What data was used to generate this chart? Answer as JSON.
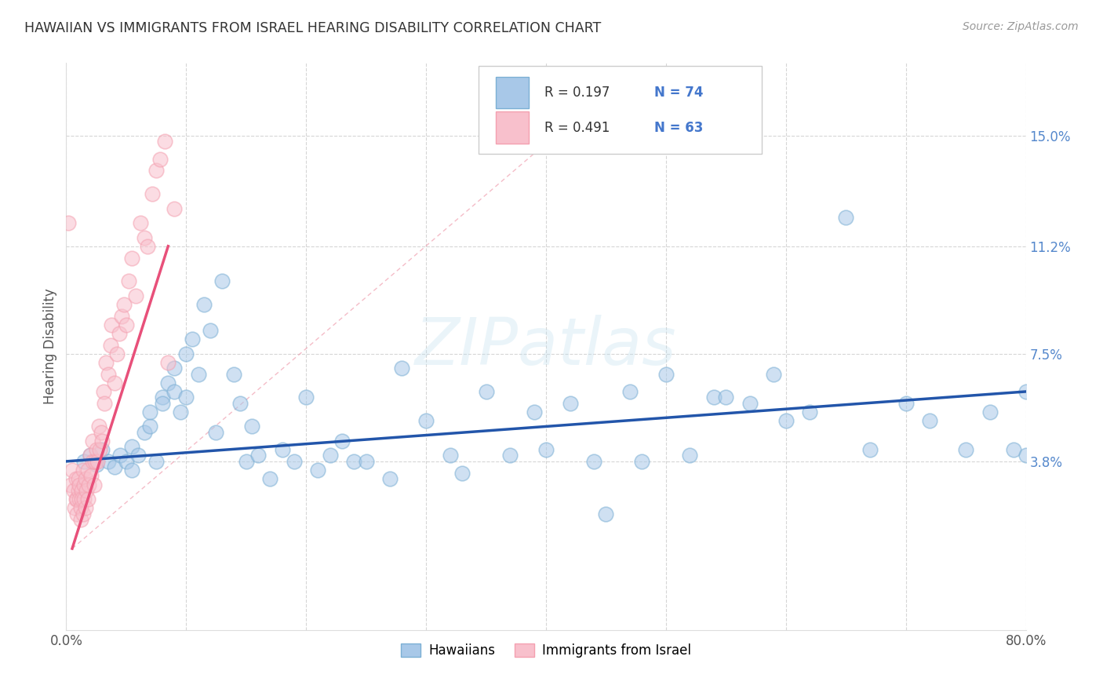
{
  "title": "HAWAIIAN VS IMMIGRANTS FROM ISRAEL HEARING DISABILITY CORRELATION CHART",
  "source": "Source: ZipAtlas.com",
  "ylabel": "Hearing Disability",
  "xlim": [
    0.0,
    0.8
  ],
  "ylim": [
    -0.02,
    0.175
  ],
  "yticks": [
    0.038,
    0.075,
    0.112,
    0.15
  ],
  "ytick_labels": [
    "3.8%",
    "7.5%",
    "11.2%",
    "15.0%"
  ],
  "xticks": [
    0.0,
    0.1,
    0.2,
    0.3,
    0.4,
    0.5,
    0.6,
    0.7,
    0.8
  ],
  "blue_color": "#7BAFD4",
  "blue_fill_color": "#A8C8E8",
  "pink_color": "#F4A0B0",
  "pink_fill_color": "#F8C0CC",
  "blue_line_color": "#2255AA",
  "pink_line_color": "#E8507A",
  "legend_R_blue": "0.197",
  "legend_N_blue": "74",
  "legend_R_pink": "0.491",
  "legend_N_pink": "63",
  "watermark": "ZIPatlas",
  "hawaiians_label": "Hawaiians",
  "israel_label": "Immigrants from Israel",
  "blue_scatter_x": [
    0.015,
    0.02,
    0.025,
    0.03,
    0.035,
    0.04,
    0.045,
    0.05,
    0.055,
    0.055,
    0.06,
    0.065,
    0.07,
    0.07,
    0.075,
    0.08,
    0.08,
    0.085,
    0.09,
    0.09,
    0.095,
    0.1,
    0.1,
    0.105,
    0.11,
    0.115,
    0.12,
    0.125,
    0.13,
    0.14,
    0.145,
    0.15,
    0.155,
    0.16,
    0.17,
    0.18,
    0.19,
    0.2,
    0.21,
    0.22,
    0.23,
    0.24,
    0.25,
    0.27,
    0.28,
    0.3,
    0.32,
    0.33,
    0.35,
    0.37,
    0.39,
    0.4,
    0.42,
    0.44,
    0.45,
    0.47,
    0.48,
    0.5,
    0.52,
    0.54,
    0.55,
    0.57,
    0.59,
    0.6,
    0.62,
    0.65,
    0.67,
    0.7,
    0.72,
    0.75,
    0.77,
    0.79,
    0.8,
    0.8
  ],
  "blue_scatter_y": [
    0.038,
    0.04,
    0.037,
    0.042,
    0.038,
    0.036,
    0.04,
    0.038,
    0.035,
    0.043,
    0.04,
    0.048,
    0.05,
    0.055,
    0.038,
    0.06,
    0.058,
    0.065,
    0.062,
    0.07,
    0.055,
    0.075,
    0.06,
    0.08,
    0.068,
    0.092,
    0.083,
    0.048,
    0.1,
    0.068,
    0.058,
    0.038,
    0.05,
    0.04,
    0.032,
    0.042,
    0.038,
    0.06,
    0.035,
    0.04,
    0.045,
    0.038,
    0.038,
    0.032,
    0.07,
    0.052,
    0.04,
    0.034,
    0.062,
    0.04,
    0.055,
    0.042,
    0.058,
    0.038,
    0.02,
    0.062,
    0.038,
    0.068,
    0.04,
    0.06,
    0.06,
    0.058,
    0.068,
    0.052,
    0.055,
    0.122,
    0.042,
    0.058,
    0.052,
    0.042,
    0.055,
    0.042,
    0.04,
    0.062
  ],
  "pink_scatter_x": [
    0.002,
    0.004,
    0.005,
    0.006,
    0.007,
    0.008,
    0.008,
    0.009,
    0.009,
    0.01,
    0.01,
    0.011,
    0.011,
    0.012,
    0.012,
    0.013,
    0.013,
    0.014,
    0.014,
    0.015,
    0.015,
    0.016,
    0.016,
    0.017,
    0.018,
    0.018,
    0.019,
    0.02,
    0.021,
    0.022,
    0.022,
    0.023,
    0.024,
    0.025,
    0.026,
    0.027,
    0.028,
    0.029,
    0.03,
    0.031,
    0.032,
    0.033,
    0.035,
    0.037,
    0.038,
    0.04,
    0.042,
    0.044,
    0.046,
    0.048,
    0.05,
    0.052,
    0.055,
    0.058,
    0.062,
    0.065,
    0.068,
    0.072,
    0.075,
    0.078,
    0.082,
    0.085,
    0.09
  ],
  "pink_scatter_y": [
    0.12,
    0.03,
    0.035,
    0.028,
    0.022,
    0.025,
    0.032,
    0.02,
    0.025,
    0.028,
    0.032,
    0.025,
    0.03,
    0.022,
    0.018,
    0.028,
    0.025,
    0.02,
    0.035,
    0.03,
    0.025,
    0.032,
    0.022,
    0.028,
    0.035,
    0.025,
    0.03,
    0.04,
    0.033,
    0.038,
    0.045,
    0.03,
    0.038,
    0.042,
    0.038,
    0.05,
    0.042,
    0.048,
    0.045,
    0.062,
    0.058,
    0.072,
    0.068,
    0.078,
    0.085,
    0.065,
    0.075,
    0.082,
    0.088,
    0.092,
    0.085,
    0.1,
    0.108,
    0.095,
    0.12,
    0.115,
    0.112,
    0.13,
    0.138,
    0.142,
    0.148,
    0.072,
    0.125
  ],
  "blue_trend_x": [
    0.0,
    0.8
  ],
  "blue_trend_y": [
    0.038,
    0.062
  ],
  "pink_trend_x": [
    0.005,
    0.085
  ],
  "pink_trend_y": [
    0.008,
    0.112
  ],
  "diag_line_x": [
    0.005,
    0.45
  ],
  "diag_line_y": [
    0.008,
    0.165
  ],
  "background_color": "#FFFFFF",
  "grid_color": "#CCCCCC",
  "title_color": "#333333",
  "right_tick_color": "#5588CC",
  "legend_text_color": "#333333",
  "legend_n_color": "#4477CC",
  "figsize": [
    14.06,
    8.92
  ]
}
